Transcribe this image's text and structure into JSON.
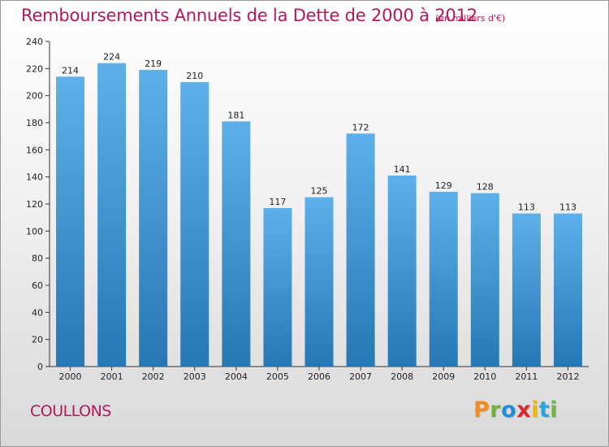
{
  "title": "Remboursements Annuels de la Dette de 2000 à 2012",
  "subtitle": "(en milliers d'€)",
  "commune": "COULLONS",
  "brand": {
    "letters": [
      "P",
      "r",
      "o",
      "x",
      "i",
      "t",
      "i"
    ],
    "colors": [
      "#f28c1e",
      "#6fb43f",
      "#1f8fd8",
      "#e0262d",
      "#f0b414",
      "#2aa3d6",
      "#6fb43f"
    ]
  },
  "colors": {
    "bar_top": "#5eb0ea",
    "bar_bottom": "#2677b3",
    "axis": "#333333",
    "title": "#b0195b"
  },
  "chart_data": {
    "type": "bar",
    "categories": [
      "2000",
      "2001",
      "2002",
      "2003",
      "2004",
      "2005",
      "2006",
      "2007",
      "2008",
      "2009",
      "2010",
      "2011",
      "2012"
    ],
    "values": [
      214,
      224,
      219,
      210,
      181,
      117,
      125,
      172,
      141,
      129,
      128,
      113,
      113
    ],
    "title": "Remboursements Annuels de la Dette de 2000 à 2012",
    "subtitle": "(en milliers d'€)",
    "xlabel": "",
    "ylabel": "",
    "ylim": [
      0,
      240
    ],
    "yticks": [
      0,
      20,
      40,
      60,
      80,
      100,
      120,
      140,
      160,
      180,
      200,
      220,
      240
    ],
    "grid": false,
    "data_labels": true
  }
}
